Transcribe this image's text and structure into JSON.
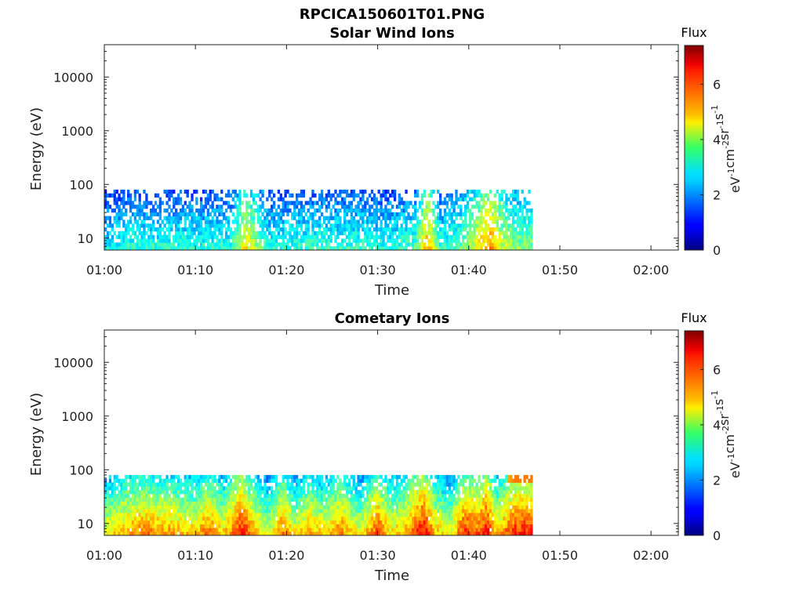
{
  "figure_title": "RPCICA150601T01.PNG",
  "chart_data": [
    {
      "type": "heatmap",
      "title": "Solar Wind Ions",
      "xlabel": "Time",
      "ylabel": "Energy (eV)",
      "yscale": "log",
      "ylim": [
        6,
        40000
      ],
      "xlim": [
        "01:00",
        "02:03"
      ],
      "x_ticks": [
        "01:00",
        "01:10",
        "01:20",
        "01:30",
        "01:40",
        "01:50",
        "02:00"
      ],
      "y_ticks": [
        "10",
        "100",
        "1000",
        "10000"
      ],
      "data_time_range": [
        "01:00",
        "01:47"
      ],
      "energy_range_eV": [
        6,
        80
      ],
      "colorbar": {
        "title": "Flux",
        "label_parts": [
          "eV",
          "-1",
          "cm",
          "-2",
          "sr",
          "-1",
          "s",
          "-1"
        ],
        "ticks": [
          "0",
          "2",
          "4",
          "6"
        ],
        "range": [
          0,
          7.4
        ],
        "colormap": "jet"
      },
      "flux_profile": {
        "t_min": [
          0,
          2,
          4,
          6,
          8,
          10,
          12,
          14,
          15.5,
          16.5,
          18,
          20,
          22,
          24,
          26,
          28,
          30,
          32,
          34,
          35.5,
          37,
          39,
          40.5,
          41.5,
          42.5,
          43.5,
          45,
          47
        ],
        "level": [
          2.8,
          3.0,
          3.1,
          3.0,
          3.1,
          3.0,
          3.1,
          3.1,
          4.8,
          4.0,
          3.0,
          3.1,
          3.1,
          3.2,
          3.1,
          3.2,
          3.0,
          3.1,
          3.2,
          5.2,
          3.0,
          3.5,
          4.2,
          5.0,
          5.4,
          4.4,
          3.8,
          3.8
        ]
      }
    },
    {
      "type": "heatmap",
      "title": "Cometary Ions",
      "xlabel": "Time",
      "ylabel": "Energy (eV)",
      "yscale": "log",
      "ylim": [
        6,
        40000
      ],
      "xlim": [
        "01:00",
        "02:03"
      ],
      "x_ticks": [
        "01:00",
        "01:10",
        "01:20",
        "01:30",
        "01:40",
        "01:50",
        "02:00"
      ],
      "y_ticks": [
        "10",
        "100",
        "1000",
        "10000"
      ],
      "data_time_range": [
        "01:00",
        "01:47"
      ],
      "energy_range_eV": [
        6,
        80
      ],
      "colorbar": {
        "title": "Flux",
        "label_parts": [
          "eV",
          "-1",
          "cm",
          "-2",
          "sr",
          "-1",
          "s",
          "-1"
        ],
        "ticks": [
          "0",
          "2",
          "4",
          "6"
        ],
        "range": [
          0,
          7.4
        ],
        "colormap": "jet"
      },
      "flux_profile": {
        "t_min": [
          0,
          2,
          4,
          6,
          8,
          10,
          11.5,
          13,
          15,
          16.5,
          18,
          19.5,
          21,
          22.5,
          24,
          26,
          28,
          30,
          31.5,
          33,
          35,
          36.5,
          38,
          39.5,
          41,
          42,
          43,
          45,
          47
        ],
        "level": [
          4.6,
          5.2,
          5.6,
          5.4,
          5.2,
          5.0,
          5.8,
          4.8,
          6.4,
          5.2,
          4.4,
          5.8,
          4.6,
          5.4,
          4.8,
          5.6,
          4.5,
          6.0,
          4.8,
          5.2,
          6.6,
          5.0,
          4.6,
          6.2,
          5.8,
          6.6,
          5.0,
          6.2,
          6.2
        ]
      }
    }
  ]
}
